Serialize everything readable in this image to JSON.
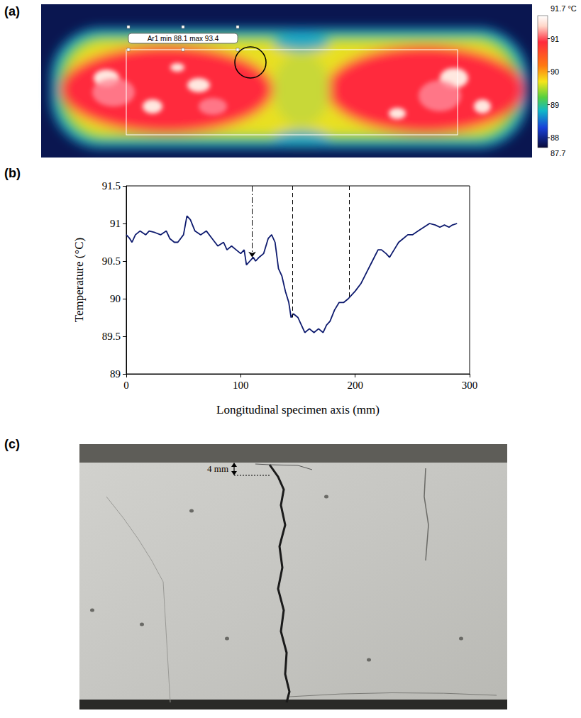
{
  "panel_labels": [
    "(a)",
    "(b)",
    "(c)"
  ],
  "thermal_image": {
    "box_label": "Ar1 min 88.1 max 93.4",
    "colorbar": {
      "range": [
        87.7,
        91.7
      ],
      "ticks": [
        {
          "value": 91.7,
          "label": "91.7 °C"
        },
        91,
        90,
        89,
        88,
        87.7
      ]
    }
  },
  "chart_data": {
    "type": "line",
    "x_label": "Longitudinal specimen axis (mm)",
    "y_label": "Temperature (°C)",
    "x": [
      0,
      3,
      5,
      8,
      12,
      17,
      20,
      25,
      30,
      35,
      38,
      42,
      45,
      50,
      53,
      56,
      60,
      65,
      70,
      75,
      80,
      85,
      88,
      92,
      96,
      100,
      103,
      105,
      108,
      111,
      113,
      116,
      120,
      124,
      127,
      130,
      133,
      136,
      139,
      142,
      144,
      146,
      150,
      153,
      156,
      160,
      164,
      168,
      172,
      175,
      178,
      182,
      186,
      190,
      194,
      197,
      200,
      205,
      210,
      215,
      220,
      223,
      227,
      230,
      234,
      238,
      242,
      246,
      250,
      255,
      260,
      265,
      270,
      274,
      278,
      282,
      285,
      289
    ],
    "values": [
      90.85,
      90.8,
      90.75,
      90.85,
      90.9,
      90.85,
      90.9,
      90.88,
      90.85,
      90.9,
      90.8,
      90.75,
      90.75,
      90.85,
      91.1,
      91.05,
      90.9,
      90.85,
      90.9,
      90.8,
      90.7,
      90.75,
      90.65,
      90.7,
      90.65,
      90.6,
      90.65,
      90.45,
      90.5,
      90.55,
      90.5,
      90.55,
      90.6,
      90.8,
      90.85,
      90.75,
      90.4,
      90.3,
      90.1,
      89.95,
      89.75,
      89.8,
      89.75,
      89.65,
      89.55,
      89.6,
      89.55,
      89.6,
      89.55,
      89.65,
      89.7,
      89.85,
      89.95,
      89.95,
      90.0,
      90.05,
      90.1,
      90.2,
      90.35,
      90.5,
      90.65,
      90.65,
      90.6,
      90.55,
      90.65,
      90.75,
      90.8,
      90.85,
      90.85,
      90.9,
      90.95,
      91.0,
      90.98,
      90.95,
      90.98,
      90.95,
      90.98,
      91.0
    ],
    "color": "#0d1a6e",
    "xlim": [
      0,
      300
    ],
    "xticks": [
      0,
      100,
      200,
      300
    ],
    "ylim": [
      89,
      91.5
    ],
    "yticks": [
      89,
      89.5,
      90,
      90.5,
      91,
      91.5
    ],
    "grid": false,
    "reference_lines": [
      {
        "x": 110,
        "line_style": "dashdot"
      },
      {
        "x": 145,
        "line_style": "dashed"
      },
      {
        "x": 195,
        "line_style": "dashed"
      }
    ]
  },
  "photo": {
    "annotation": "4 mm"
  }
}
